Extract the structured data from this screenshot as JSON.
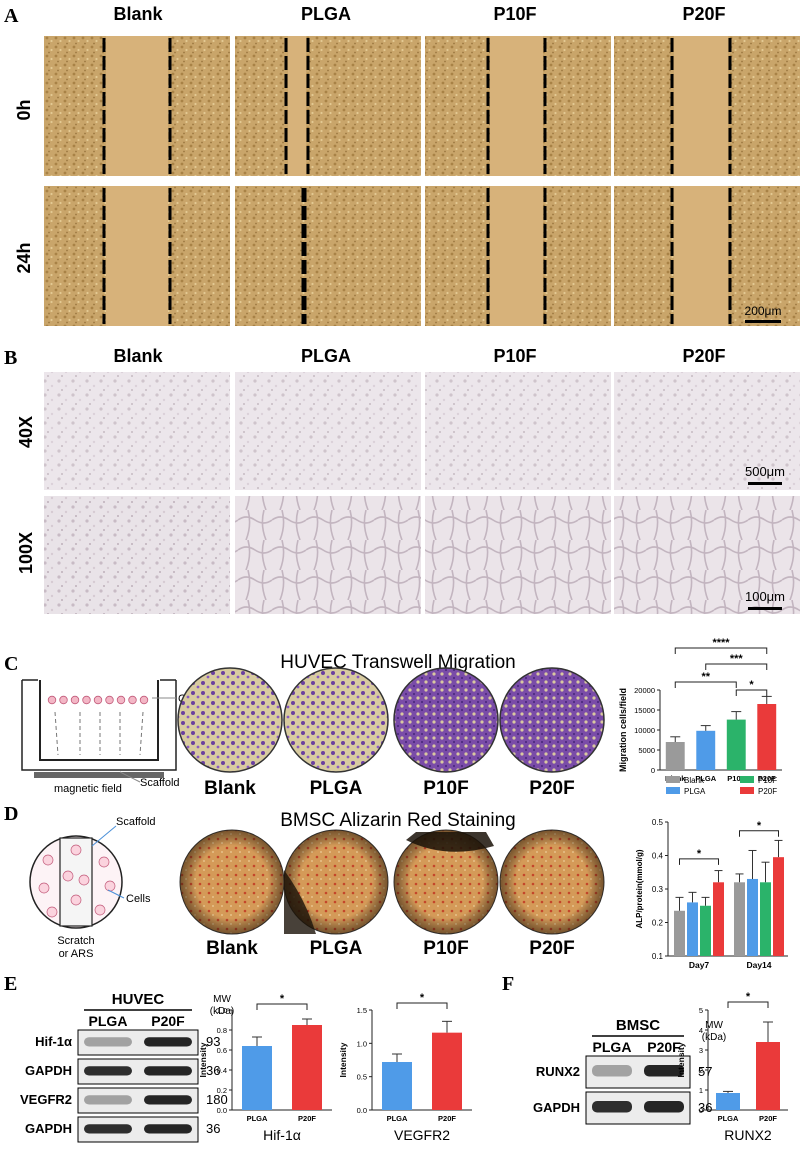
{
  "panels": {
    "A": {
      "letter": "A",
      "columns": [
        "Blank",
        "PLGA",
        "P10F",
        "P20F"
      ],
      "rows": [
        "0h",
        "24h"
      ],
      "scale_bar": "200μm"
    },
    "B": {
      "letter": "B",
      "columns": [
        "Blank",
        "PLGA",
        "P10F",
        "P20F"
      ],
      "rows": [
        "40X",
        "100X"
      ],
      "scale_bar_40x": "500μm",
      "scale_bar_100x": "100μm"
    },
    "C": {
      "letter": "C",
      "title": "HUVEC Transwell Migration",
      "schematic": {
        "cells": "Cells",
        "scaffold": "Scaffold",
        "field": "magnetic field"
      },
      "groups": [
        "Blank",
        "PLGA",
        "P10F",
        "P20F"
      ]
    },
    "D": {
      "letter": "D",
      "title": "BMSC Alizarin Red Staining",
      "schematic": {
        "scaffold": "Scaffold",
        "cells": "Cells",
        "scratch": "Scratch",
        "ars": "or ARS"
      },
      "groups": [
        "Blank",
        "PLGA",
        "P10F",
        "P20F"
      ]
    },
    "E": {
      "letter": "E",
      "blot": {
        "cell": "HUVEC",
        "lanes": [
          "PLGA",
          "P20F"
        ],
        "mw_label": "MW",
        "kda_label": "(kDa)",
        "bands": [
          {
            "name": "Hif-1α",
            "mw": "93"
          },
          {
            "name": "GAPDH",
            "mw": "36"
          },
          {
            "name": "VEGFR2",
            "mw": "180"
          },
          {
            "name": "GAPDH",
            "mw": "36"
          }
        ]
      }
    },
    "F": {
      "letter": "F",
      "blot": {
        "cell": "BMSC",
        "lanes": [
          "PLGA",
          "P20F"
        ],
        "mw_label": "MW",
        "kda_label": "(kDa)",
        "bands": [
          {
            "name": "RUNX2",
            "mw": "57"
          },
          {
            "name": "GAPDH",
            "mw": "36"
          }
        ]
      }
    }
  },
  "chart_data": [
    {
      "id": "migration",
      "type": "bar",
      "categories": [
        "Blank",
        "PLGA",
        "P10F",
        "P20F"
      ],
      "values": [
        7000,
        9800,
        12600,
        16500
      ],
      "errors": [
        1300,
        1300,
        2000,
        1900
      ],
      "colors": [
        "#9a9a9a",
        "#4f9be8",
        "#2bb36a",
        "#ea3a3a"
      ],
      "ylabel": "Migration cells/field",
      "ylim": [
        0,
        20000
      ],
      "yticks": [
        "0",
        "5000",
        "10000",
        "15000",
        "20000"
      ],
      "significance": [
        {
          "from": 0,
          "to": 3,
          "label": "****"
        },
        {
          "from": 1,
          "to": 3,
          "label": "***"
        },
        {
          "from": 0,
          "to": 2,
          "label": "**"
        },
        {
          "from": 2,
          "to": 3,
          "label": "*"
        }
      ]
    },
    {
      "id": "alp",
      "type": "bar",
      "categories": [
        "Day7",
        "Day14"
      ],
      "series": [
        {
          "name": "Blank",
          "values": [
            0.235,
            0.32
          ],
          "errors": [
            0.04,
            0.025
          ],
          "color": "#9a9a9a"
        },
        {
          "name": "PLGA",
          "values": [
            0.26,
            0.33
          ],
          "errors": [
            0.03,
            0.085
          ],
          "color": "#4f9be8"
        },
        {
          "name": "P10F",
          "values": [
            0.25,
            0.32
          ],
          "errors": [
            0.025,
            0.06
          ],
          "color": "#2bb36a"
        },
        {
          "name": "P20F",
          "values": [
            0.32,
            0.395
          ],
          "errors": [
            0.035,
            0.05
          ],
          "color": "#ea3a3a"
        }
      ],
      "ylabel": "ALP/protein(mmol/g)",
      "ylim": [
        0.1,
        0.5
      ],
      "yticks": [
        "0.1",
        "0.2",
        "0.3",
        "0.4",
        "0.5"
      ],
      "significance": [
        {
          "label": "*"
        },
        {
          "label": "*"
        }
      ]
    },
    {
      "id": "hif",
      "type": "bar",
      "categories": [
        "PLGA",
        "P20F"
      ],
      "values": [
        0.64,
        0.85
      ],
      "errors": [
        0.09,
        0.06
      ],
      "colors": [
        "#4f9be8",
        "#ea3a3a"
      ],
      "ylabel": "Intensity",
      "xlabel": "Hif-1α",
      "ylim": [
        0,
        1.0
      ],
      "yticks": [
        "0.0",
        "0.2",
        "0.4",
        "0.6",
        "0.8",
        "1.0"
      ],
      "significance": [
        {
          "from": 0,
          "to": 1,
          "label": "*"
        }
      ]
    },
    {
      "id": "vegfr",
      "type": "bar",
      "categories": [
        "PLGA",
        "P20F"
      ],
      "values": [
        0.72,
        1.16
      ],
      "errors": [
        0.12,
        0.17
      ],
      "colors": [
        "#4f9be8",
        "#ea3a3a"
      ],
      "ylabel": "Intensity",
      "xlabel": "VEGFR2",
      "ylim": [
        0,
        1.5
      ],
      "yticks": [
        "0.0",
        "0.5",
        "1.0",
        "1.5"
      ],
      "significance": [
        {
          "from": 0,
          "to": 1,
          "label": "*"
        }
      ]
    },
    {
      "id": "runx",
      "type": "bar",
      "categories": [
        "PLGA",
        "P20F"
      ],
      "values": [
        0.85,
        3.4
      ],
      "errors": [
        0.08,
        1.0
      ],
      "colors": [
        "#4f9be8",
        "#ea3a3a"
      ],
      "ylabel": "Intensity",
      "xlabel": "RUNX2",
      "ylim": [
        0,
        5
      ],
      "yticks": [
        "0",
        "1",
        "2",
        "3",
        "4",
        "5"
      ],
      "significance": [
        {
          "from": 0,
          "to": 1,
          "label": "*"
        }
      ]
    }
  ]
}
